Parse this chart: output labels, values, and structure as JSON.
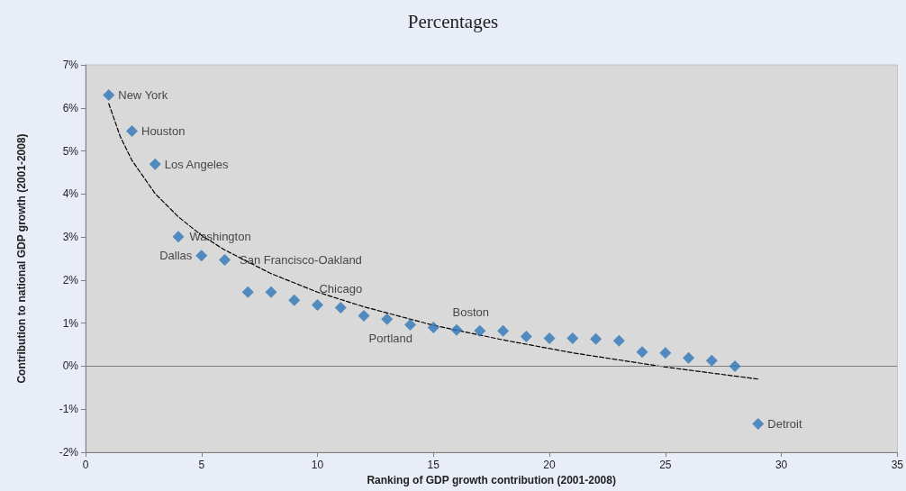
{
  "chart_data": {
    "type": "scatter",
    "title": "Percentages",
    "xlabel": "Ranking of GDP growth contribution (2001-2008)",
    "ylabel": "Contribution to national GDP growth (2001-2008)",
    "xlim": [
      0,
      35
    ],
    "xticks": [
      0,
      5,
      10,
      15,
      20,
      25,
      30,
      35
    ],
    "ylim": [
      -2,
      7
    ],
    "yticks": [
      {
        "value": -2,
        "label": "-2%"
      },
      {
        "value": -1,
        "label": "-1%"
      },
      {
        "value": 0,
        "label": "0%"
      },
      {
        "value": 1,
        "label": "1%"
      },
      {
        "value": 2,
        "label": "2%"
      },
      {
        "value": 3,
        "label": "3%"
      },
      {
        "value": 4,
        "label": "4%"
      },
      {
        "value": 5,
        "label": "5%"
      },
      {
        "value": 6,
        "label": "6%"
      },
      {
        "value": 7,
        "label": "7%"
      }
    ],
    "grid": false,
    "marker": "diamond",
    "series": [
      {
        "color": "#2e75b6",
        "x": [
          1,
          2,
          3,
          4,
          5,
          6,
          7,
          8,
          9,
          10,
          11,
          12,
          13,
          14,
          15,
          16,
          17,
          18,
          19,
          20,
          21,
          22,
          23,
          24,
          25,
          26,
          27,
          28,
          29
        ],
        "values": [
          6.3,
          5.46,
          4.69,
          3.01,
          2.57,
          2.47,
          1.72,
          1.72,
          1.53,
          1.42,
          1.36,
          1.17,
          1.09,
          0.96,
          0.9,
          0.84,
          0.82,
          0.82,
          0.69,
          0.65,
          0.65,
          0.63,
          0.59,
          0.33,
          0.31,
          0.19,
          0.13,
          0.0,
          -1.34
        ]
      },
      {
        "type": "line",
        "color": "#000000",
        "line_style": "dashed",
        "marker": "none",
        "x": [
          1,
          1.5,
          2,
          3,
          4,
          5,
          6,
          8,
          10,
          12,
          15,
          18,
          21,
          25,
          29
        ],
        "values": [
          6.1,
          5.33,
          4.78,
          4.01,
          3.47,
          3.04,
          2.7,
          2.15,
          1.72,
          1.38,
          0.95,
          0.61,
          0.31,
          -0.02,
          -0.3
        ]
      }
    ],
    "ref_lines": [
      {
        "axis": "y",
        "value": 0,
        "color": "#808080"
      }
    ],
    "annotations": [
      {
        "text": "New York",
        "x": 1,
        "y": 6.3
      },
      {
        "text": "Houston",
        "x": 2,
        "y": 5.46
      },
      {
        "text": "Los Angeles",
        "x": 3,
        "y": 4.69
      },
      {
        "text": "Washington",
        "x": 4,
        "y": 3.01
      },
      {
        "text": "Dallas",
        "x": 5,
        "y": 2.57
      },
      {
        "text": "San Francisco-Oakland",
        "x": 6,
        "y": 2.47
      },
      {
        "text": "Chicago",
        "x": 11,
        "y": 1.36
      },
      {
        "text": "Portland",
        "x": 13,
        "y": 1.09
      },
      {
        "text": "Boston",
        "x": 17,
        "y": 0.82
      },
      {
        "text": "Detroit",
        "x": 29,
        "y": -1.34
      }
    ]
  }
}
